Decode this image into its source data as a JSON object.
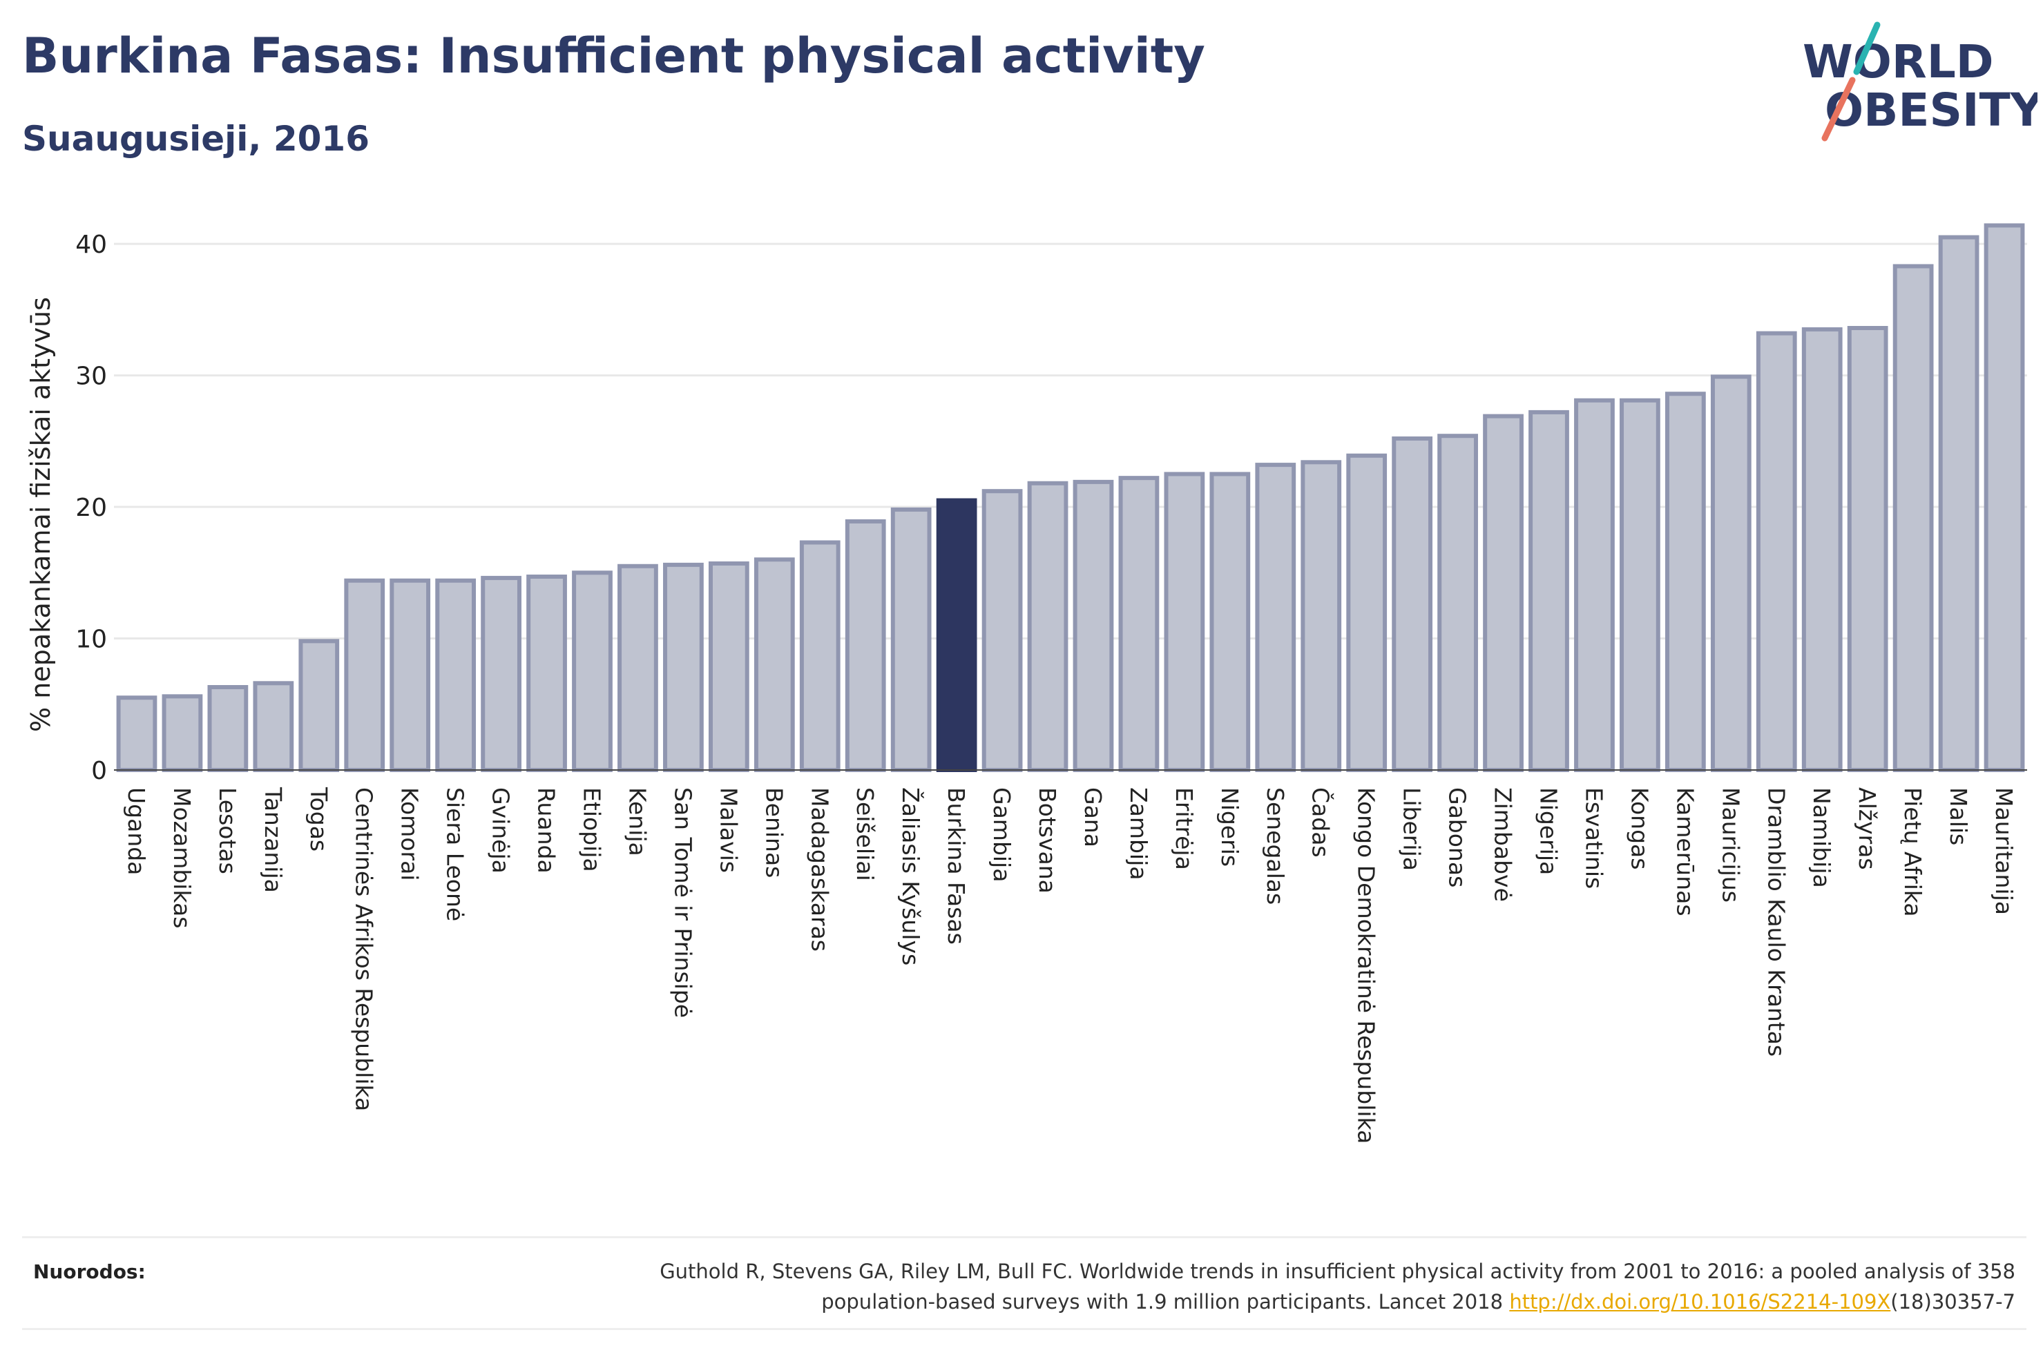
{
  "title": "Burkina Fasas: Insufficient physical activity",
  "subtitle": "Suaugusieji, 2016",
  "logo": {
    "line1": "WORLD",
    "line2": "OBESITY"
  },
  "colors": {
    "bar": "#bfc3d0",
    "bar_border": "#9096b0",
    "highlight": "#2d3660",
    "text": "#2d3a66",
    "grid": "#e8e8e8"
  },
  "chart_data": {
    "type": "bar",
    "ylabel": "% nepakankamai fiziškai aktyvūs",
    "ylim": [
      0,
      42
    ],
    "yticks": [
      0,
      10,
      20,
      30,
      40
    ],
    "highlight": "Burkina Fasas",
    "grid": true,
    "categories": [
      "Uganda",
      "Mozambikas",
      "Lesotas",
      "Tanzanija",
      "Togas",
      "Centrinės Afrikos Respublika",
      "Komorai",
      "Siera Leonė",
      "Gvinėja",
      "Ruanda",
      "Etiopija",
      "Kenija",
      "San Tomė ir Prinsipė",
      "Malavis",
      "Beninas",
      "Madagaskaras",
      "Seišeliai",
      "Žaliasis Kyšulys",
      "Burkina Fasas",
      "Gambija",
      "Botsvana",
      "Gana",
      "Zambija",
      "Eritrėja",
      "Nigeris",
      "Senegalas",
      "Čadas",
      "Kongo Demokratinė Respublika",
      "Liberija",
      "Gabonas",
      "Zimbabvė",
      "Nigerija",
      "Esvatinis",
      "Kongas",
      "Kamerūnas",
      "Mauricijus",
      "Dramblio Kaulo Krantas",
      "Namibija",
      "Alžyras",
      "Pietų Afrika",
      "Malis",
      "Mauritanija"
    ],
    "values": [
      5.5,
      5.6,
      6.3,
      6.6,
      9.8,
      14.4,
      14.4,
      14.4,
      14.6,
      14.7,
      15.0,
      15.5,
      15.6,
      15.7,
      16.0,
      17.3,
      18.9,
      19.8,
      20.5,
      21.2,
      21.8,
      21.9,
      22.2,
      22.5,
      22.5,
      23.2,
      23.4,
      23.9,
      25.2,
      25.4,
      26.9,
      27.2,
      28.1,
      28.1,
      28.6,
      29.9,
      33.2,
      33.5,
      33.6,
      38.3,
      40.5,
      41.4
    ]
  },
  "footer": {
    "label": "Nuorodos:",
    "text_line1": "Guthold R, Stevens GA, Riley LM, Bull FC. Worldwide trends in insufficient physical activity from 2001 to 2016: a pooled analysis of 358",
    "text_line2_pre": "population-based surveys with 1.9 million participants. Lancet 2018 ",
    "link": "http://dx.doi.org/10.1016/S2214-109X",
    "text_line2_post": "(18)30357-7"
  }
}
